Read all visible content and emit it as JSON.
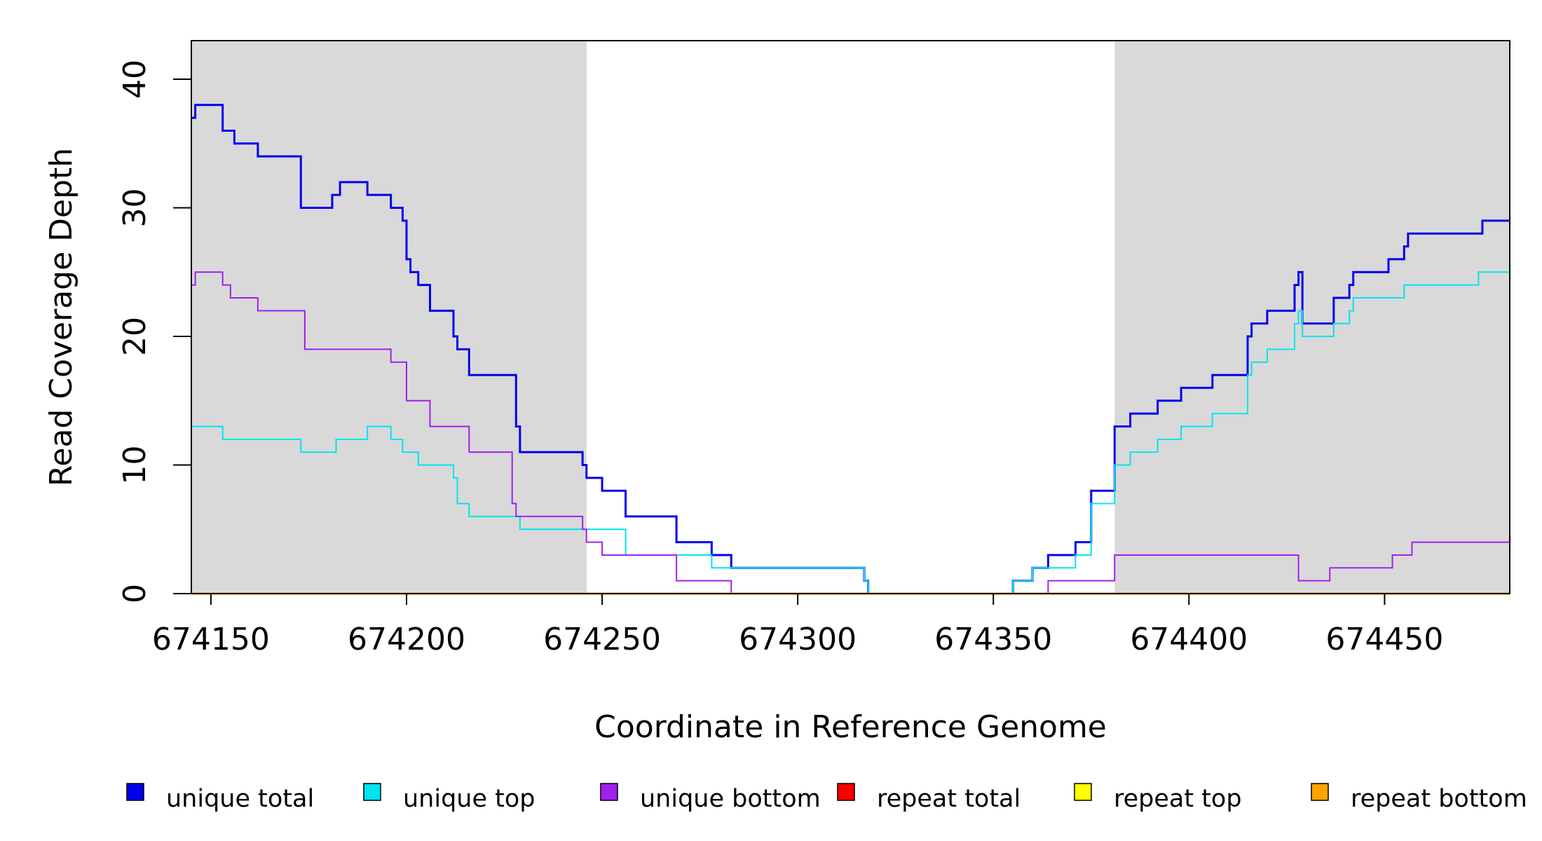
{
  "chart_data": {
    "type": "line",
    "step": true,
    "title": "",
    "xlabel": "Coordinate in Reference Genome",
    "ylabel": "Read Coverage Depth",
    "xlim": [
      674145,
      674482
    ],
    "ylim": [
      0,
      43
    ],
    "x_ticks": [
      674150,
      674200,
      674250,
      674300,
      674350,
      674400,
      674450
    ],
    "x_tick_labels": [
      "674150",
      "674200",
      "674250",
      "674300",
      "674350",
      "674400",
      "674450"
    ],
    "y_ticks": [
      0,
      10,
      20,
      30,
      40
    ],
    "y_tick_labels": [
      "0",
      "10",
      "20",
      "30",
      "40"
    ],
    "shaded_regions": [
      {
        "x0": 674145,
        "x1": 674246,
        "color": "#d9d9d9"
      },
      {
        "x0": 674381,
        "x1": 674482,
        "color": "#d9d9d9"
      }
    ],
    "series": [
      {
        "name": "unique total",
        "color": "#0000ee",
        "width": 3,
        "x": [
          674145,
          674146,
          674153,
          674156,
          674162,
          674169,
          674170,
          674173,
          674181,
          674183,
          674190,
          674196,
          674199,
          674200,
          674201,
          674202,
          674203,
          674206,
          674212,
          674213,
          674216,
          674228,
          674229,
          674245,
          674246,
          674250,
          674256,
          674269,
          674278,
          674283,
          674292,
          674317,
          674318,
          674319,
          674355,
          674360,
          674364,
          674371,
          674375,
          674381,
          674385,
          674389,
          674392,
          674398,
          674401,
          674406,
          674411,
          674415,
          674416,
          674420,
          674427,
          674428,
          674429,
          674433,
          674437,
          674441,
          674442,
          674451,
          674455,
          674456,
          674457,
          674475,
          674482
        ],
        "y": [
          37,
          38,
          36,
          35,
          34,
          34,
          34,
          30,
          31,
          32,
          31,
          30,
          29,
          26,
          25,
          25,
          24,
          22,
          20,
          19,
          17,
          13,
          11,
          10,
          9,
          8,
          6,
          4,
          3,
          2,
          2,
          1,
          0,
          0,
          1,
          2,
          3,
          4,
          8,
          13,
          14,
          14,
          15,
          16,
          16,
          17,
          17,
          20,
          21,
          22,
          24,
          25,
          21,
          21,
          23,
          24,
          25,
          26,
          27,
          28,
          28,
          29,
          29
        ]
      },
      {
        "name": "unique top",
        "color": "#00e5ee",
        "width": 2,
        "x": [
          674145,
          674153,
          674170,
          674173,
          674176,
          674182,
          674190,
          674196,
          674199,
          674201,
          674203,
          674212,
          674213,
          674216,
          674228,
          674229,
          674246,
          674256,
          674269,
          674278,
          674283,
          674292,
          674317,
          674318,
          674319,
          674355,
          674360,
          674364,
          674371,
          674375,
          674376,
          674381,
          674385,
          674389,
          674392,
          674398,
          674401,
          674406,
          674415,
          674416,
          674420,
          674427,
          674428,
          674429,
          674433,
          674437,
          674441,
          674442,
          674451,
          674455,
          674456,
          674474,
          674482
        ],
        "y": [
          13,
          12,
          12,
          11,
          11,
          12,
          13,
          12,
          11,
          11,
          10,
          9,
          7,
          6,
          6,
          5,
          5,
          3,
          3,
          2,
          2,
          2,
          1,
          0,
          0,
          1,
          2,
          2,
          3,
          7,
          7,
          10,
          11,
          11,
          12,
          13,
          13,
          14,
          17,
          18,
          19,
          21,
          22,
          20,
          20,
          21,
          22,
          23,
          23,
          24,
          24,
          25,
          25
        ]
      },
      {
        "name": "unique bottom",
        "color": "#a020f0",
        "width": 2,
        "x": [
          674145,
          674146,
          674153,
          674155,
          674162,
          674174,
          674196,
          674200,
          674206,
          674216,
          674227,
          674228,
          674229,
          674245,
          674246,
          674250,
          674269,
          674283,
          674364,
          674381,
          674428,
          674436,
          674452,
          674457,
          674482
        ],
        "y": [
          24,
          25,
          24,
          23,
          22,
          19,
          18,
          15,
          13,
          11,
          7,
          6,
          6,
          5,
          4,
          3,
          1,
          0,
          1,
          3,
          1,
          2,
          3,
          4,
          4
        ]
      },
      {
        "name": "repeat total",
        "color": "#ff0000",
        "width": 2,
        "x": [
          674145,
          674482
        ],
        "y": [
          0,
          0
        ]
      },
      {
        "name": "repeat top",
        "color": "#ffff00",
        "width": 2,
        "x": [
          674145,
          674482
        ],
        "y": [
          0,
          0
        ]
      },
      {
        "name": "repeat bottom",
        "color": "#ffa500",
        "width": 3,
        "x": [
          674145,
          674482
        ],
        "y": [
          0,
          0
        ]
      }
    ],
    "legend": {
      "placement": "bottom",
      "entries": [
        {
          "name": "unique total",
          "color": "#0000ee"
        },
        {
          "name": "unique top",
          "color": "#00e5ee"
        },
        {
          "name": "unique bottom",
          "color": "#a020f0"
        },
        {
          "name": "repeat total",
          "color": "#ff0000"
        },
        {
          "name": "repeat top",
          "color": "#ffff00"
        },
        {
          "name": "repeat bottom",
          "color": "#ffa500"
        }
      ]
    }
  }
}
